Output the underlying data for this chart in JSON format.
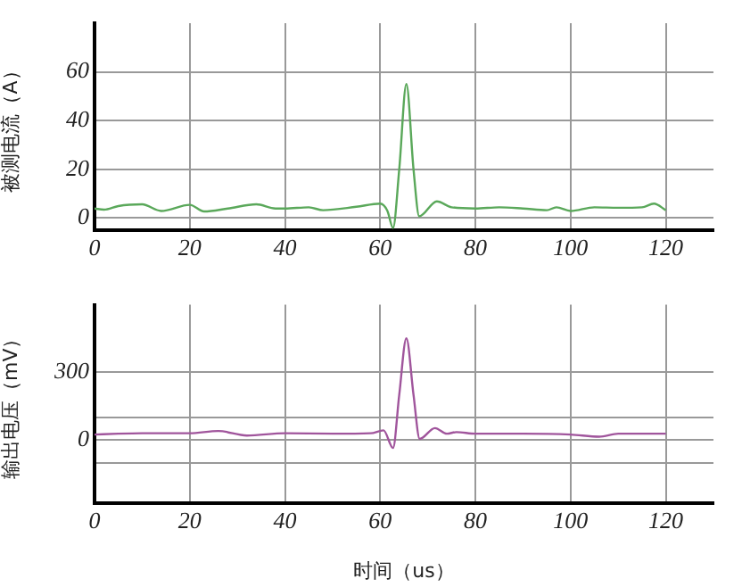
{
  "chart_data": [
    {
      "type": "line",
      "ylabel": "被测电流（A）",
      "xlim": [
        0,
        130
      ],
      "xticks": [
        0,
        20,
        40,
        60,
        80,
        100,
        120
      ],
      "ylim": [
        -5,
        80
      ],
      "yticks": [
        0,
        20,
        40,
        60
      ],
      "grid": true,
      "series": [
        {
          "color": "#5aa85a",
          "x": [
            0,
            2,
            5,
            10,
            14,
            20,
            23,
            28,
            34,
            38,
            40,
            45,
            48,
            55,
            60,
            61.5,
            62.7,
            64,
            65.5,
            67,
            68.2,
            71.9,
            75,
            80,
            85,
            90,
            95,
            97,
            100,
            105,
            110,
            115,
            117.5,
            120
          ],
          "values": [
            3.9,
            3.4,
            4.9,
            5.6,
            2.9,
            5.4,
            2.7,
            3.9,
            5.6,
            3.9,
            3.9,
            4.4,
            3.2,
            4.6,
            5.9,
            3,
            -4.1,
            20,
            55,
            20,
            0.7,
            6.8,
            4.4,
            3.9,
            4.4,
            3.9,
            3.2,
            4.4,
            2.9,
            4.4,
            4.2,
            4.4,
            5.9,
            3.2
          ]
        }
      ]
    },
    {
      "type": "line",
      "ylabel": "输出电压（mV）",
      "xlabel": "时间（us）",
      "xlim": [
        0,
        130
      ],
      "xticks": [
        0,
        20,
        40,
        60,
        80,
        100,
        120
      ],
      "ylim": [
        -280,
        600
      ],
      "yticks": [
        {
          "value": -100,
          "label": null
        },
        0,
        {
          "value": 100,
          "label": null
        },
        300
      ],
      "grid": true,
      "series": [
        {
          "color": "#a0559c",
          "x": [
            0,
            5,
            10,
            20,
            26,
            32,
            40,
            50,
            58,
            60.7,
            62.7,
            64,
            65.5,
            67,
            68.3,
            71.5,
            74,
            76,
            80,
            90,
            100,
            106,
            110,
            120
          ],
          "values": [
            24,
            28,
            30,
            30,
            40,
            20,
            30,
            28,
            30,
            43,
            -35,
            200,
            451,
            200,
            5,
            53,
            28,
            35,
            28,
            28,
            24,
            15,
            28,
            28
          ]
        }
      ]
    }
  ]
}
